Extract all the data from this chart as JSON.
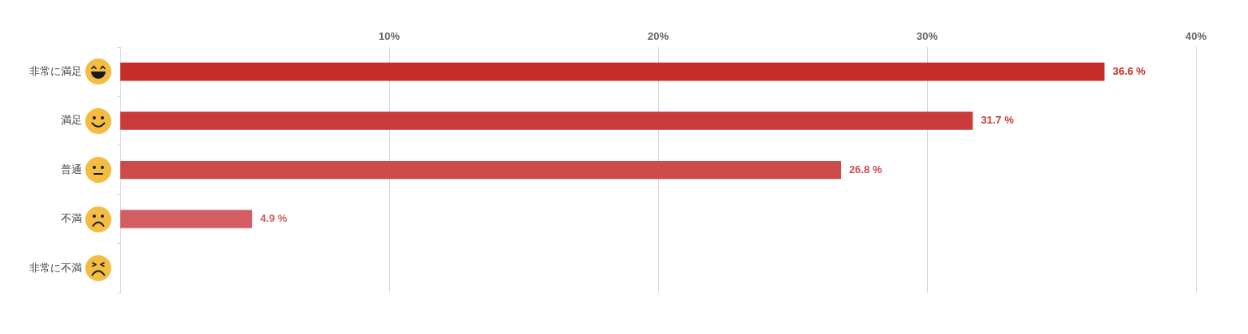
{
  "chart_data": {
    "type": "bar",
    "orientation": "horizontal",
    "categories": [
      "非常に満足",
      "満足",
      "普通",
      "不満",
      "非常に不満"
    ],
    "values": [
      36.6,
      31.7,
      26.8,
      4.9,
      null
    ],
    "colors": [
      "#c62d28",
      "#ca3a3a",
      "#ce4b4b",
      "#d35e62",
      null
    ],
    "value_labels": [
      "36.6 %",
      "31.7 %",
      "26.8 %",
      "4.9 %",
      null
    ],
    "xlim": [
      0,
      40
    ],
    "xticks": [
      {
        "value": 10,
        "label": "10%"
      },
      {
        "value": 20,
        "label": "20%"
      },
      {
        "value": 30,
        "label": "30%"
      },
      {
        "value": 40,
        "label": "40%"
      }
    ],
    "grid": "x"
  }
}
